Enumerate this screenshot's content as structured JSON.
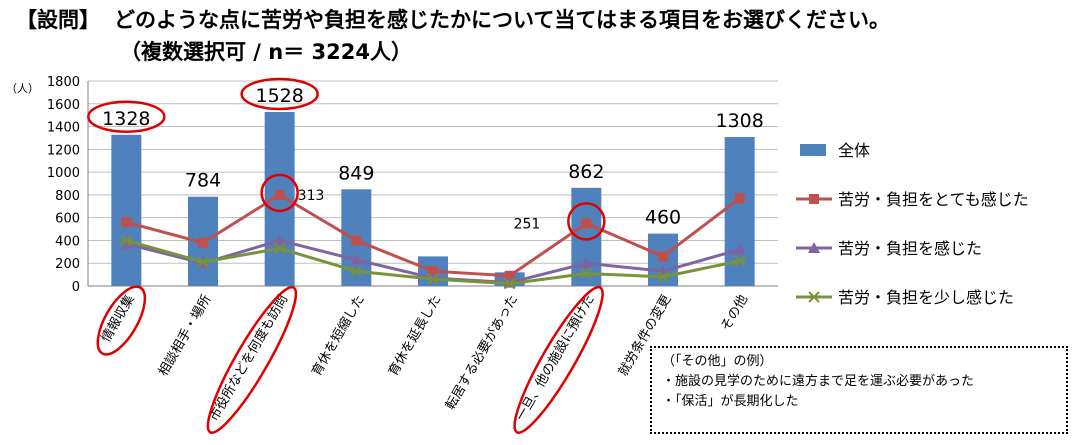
{
  "title": {
    "tag": "【設問】",
    "question": "どのような点に苦労や負担を感じたかについて当てはまる項目をお選びください。",
    "subtitle": "（複数選択可 / n＝ 3224人）"
  },
  "note": {
    "heading": "（「その他」の例）",
    "lines": [
      "・施設の見学のために遠方まで足を運ぶ必要があった",
      "・「保活」が長期化した"
    ]
  },
  "colors": {
    "bar": "#4F81BD",
    "line_strong": "#C0504D",
    "line_mid": "#8064A2",
    "line_light": "#77933C",
    "highlight": "#E00000",
    "grid": "#BFBFBF"
  },
  "chart_data": {
    "type": "bar",
    "ylabel": "（人）",
    "ylim": [
      0,
      1800
    ],
    "yticks": [
      0,
      200,
      400,
      600,
      800,
      1000,
      1200,
      1400,
      1600,
      1800
    ],
    "grid": true,
    "legend_position": "right",
    "categories": [
      "情報収集",
      "相談相手・場所",
      "市役所などを何度も訪問",
      "育休を短縮した",
      "育休を延長した",
      "転居する必要があった",
      "一旦、他の施設に預けた",
      "就労条件の変更",
      "その他"
    ],
    "series": [
      {
        "name": "全体",
        "type": "bar",
        "values": [
          1328,
          784,
          1528,
          849,
          260,
          120,
          862,
          460,
          1308
        ]
      },
      {
        "name": "苦労・負担をとても感じた",
        "type": "line",
        "marker": "square",
        "values": [
          560,
          380,
          800,
          400,
          130,
          90,
          550,
          260,
          770
        ]
      },
      {
        "name": "苦労・負担を感じた",
        "type": "line",
        "marker": "triangle",
        "values": [
          370,
          200,
          400,
          230,
          70,
          30,
          200,
          130,
          320
        ]
      },
      {
        "name": "苦労・負担を少し感じた",
        "type": "line",
        "marker": "x",
        "values": [
          400,
          210,
          330,
          130,
          60,
          20,
          110,
          80,
          220
        ]
      }
    ],
    "bar_labels": [
      "1328",
      "784",
      "1528",
      "849",
      "",
      "",
      "862",
      "460",
      "1308"
    ],
    "annotations": [
      {
        "text": "313",
        "category": "市役所などを何度も訪問"
      },
      {
        "text": "251",
        "category": "一旦、他の施設に預けた"
      }
    ],
    "highlighted_categories": [
      "情報収集",
      "市役所などを何度も訪問",
      "一旦、他の施設に預けた"
    ]
  }
}
